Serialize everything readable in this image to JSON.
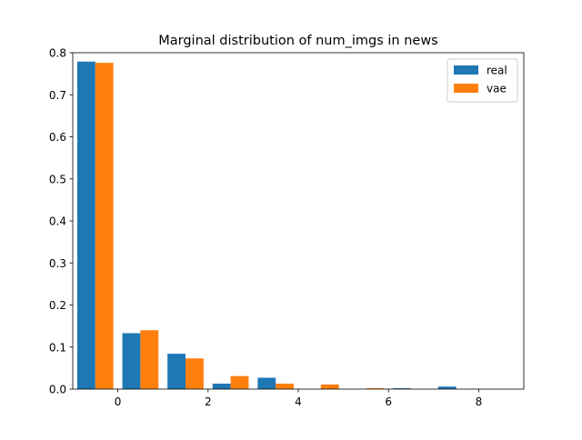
{
  "chart_data": {
    "type": "bar",
    "title": "Marginal distribution of num_imgs in news",
    "xlabel": "",
    "ylabel": "",
    "xlim": [
      -1.0,
      9.0
    ],
    "ylim": [
      0,
      0.8
    ],
    "xticks": [
      0,
      2,
      4,
      6,
      8
    ],
    "yticks": [
      0.0,
      0.1,
      0.2,
      0.3,
      0.4,
      0.5,
      0.6,
      0.7,
      0.8
    ],
    "legend_position": "top-right",
    "grid": false,
    "series": [
      {
        "name": "real",
        "color": "#1f77b4",
        "x": [
          -0.5,
          0.5,
          1.5,
          2.5,
          3.5,
          4.5,
          5.5,
          6.5,
          7.5
        ],
        "values": [
          0.779,
          0.133,
          0.084,
          0.013,
          0.027,
          0.0,
          0.0,
          0.002,
          0.006
        ]
      },
      {
        "name": "vae",
        "color": "#ff7f0e",
        "x": [
          -0.5,
          0.5,
          1.5,
          2.5,
          3.5,
          4.5,
          5.5,
          6.5,
          7.5
        ],
        "values": [
          0.776,
          0.14,
          0.073,
          0.031,
          0.013,
          0.011,
          0.002,
          0.0,
          0.0
        ]
      }
    ]
  }
}
